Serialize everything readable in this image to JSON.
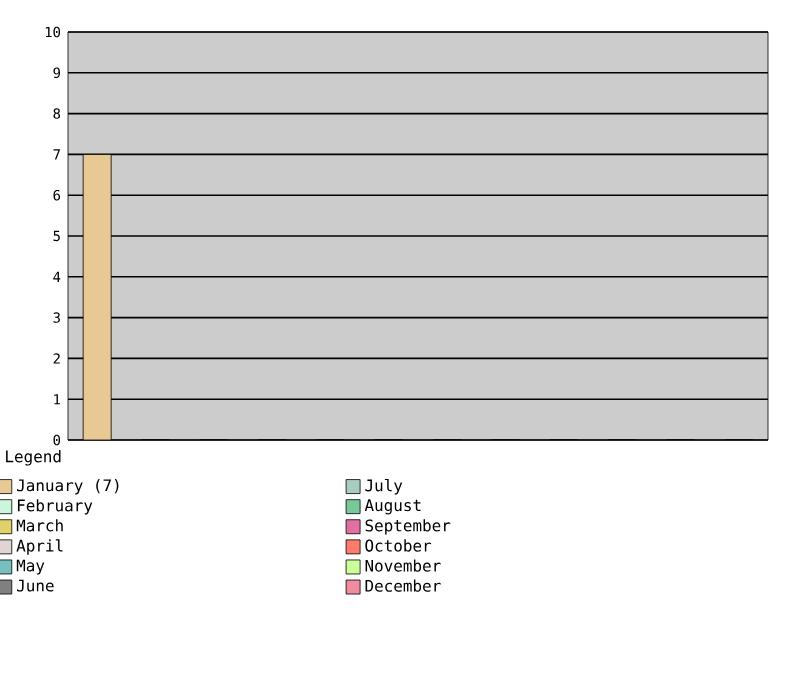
{
  "chart_data": {
    "type": "bar",
    "categories": [
      null,
      null,
      null,
      null,
      null,
      null,
      null,
      null,
      null,
      null,
      null,
      null
    ],
    "series": [
      {
        "name": "January (7)",
        "color": "#e8c994",
        "values": [
          7,
          null,
          null,
          null,
          null,
          null,
          null,
          null,
          null,
          null,
          null,
          null
        ]
      },
      {
        "name": "February",
        "color": "#ccf5dc",
        "values": [
          null,
          0,
          null,
          null,
          null,
          null,
          null,
          null,
          null,
          null,
          null,
          null
        ]
      },
      {
        "name": "March",
        "color": "#e0d268",
        "values": [
          null,
          null,
          0,
          null,
          null,
          null,
          null,
          null,
          null,
          null,
          null,
          null
        ]
      },
      {
        "name": "April",
        "color": "#e0d4d4",
        "values": [
          null,
          null,
          null,
          0,
          null,
          null,
          null,
          null,
          null,
          null,
          null,
          null
        ]
      },
      {
        "name": "May",
        "color": "#78c0c0",
        "values": [
          null,
          null,
          null,
          null,
          0,
          null,
          null,
          null,
          null,
          null,
          null,
          null
        ]
      },
      {
        "name": "June",
        "color": "#808080",
        "values": [
          null,
          null,
          null,
          null,
          null,
          0,
          null,
          null,
          null,
          null,
          null,
          null
        ]
      },
      {
        "name": "July",
        "color": "#a8ccc0",
        "values": [
          null,
          null,
          null,
          null,
          null,
          null,
          0,
          null,
          null,
          null,
          null,
          null
        ]
      },
      {
        "name": "August",
        "color": "#78c898",
        "values": [
          null,
          null,
          null,
          null,
          null,
          null,
          null,
          0,
          null,
          null,
          null,
          null
        ]
      },
      {
        "name": "September",
        "color": "#e070a0",
        "values": [
          null,
          null,
          null,
          null,
          null,
          null,
          null,
          null,
          0,
          null,
          null,
          null
        ]
      },
      {
        "name": "October",
        "color": "#ff7c6c",
        "values": [
          null,
          null,
          null,
          null,
          null,
          null,
          null,
          null,
          null,
          0,
          null,
          null
        ]
      },
      {
        "name": "November",
        "color": "#ccff99",
        "values": [
          null,
          null,
          null,
          null,
          null,
          null,
          null,
          null,
          null,
          null,
          0,
          null
        ]
      },
      {
        "name": "December",
        "color": "#f08ca0",
        "values": [
          null,
          null,
          null,
          null,
          null,
          null,
          null,
          null,
          null,
          null,
          null,
          0
        ]
      }
    ],
    "ylim": [
      0,
      10
    ],
    "yticks": [
      0,
      1,
      2,
      3,
      4,
      5,
      6,
      7,
      8,
      9,
      10
    ],
    "grid": "y",
    "legend": "bottom",
    "legend_title": "Legend"
  }
}
